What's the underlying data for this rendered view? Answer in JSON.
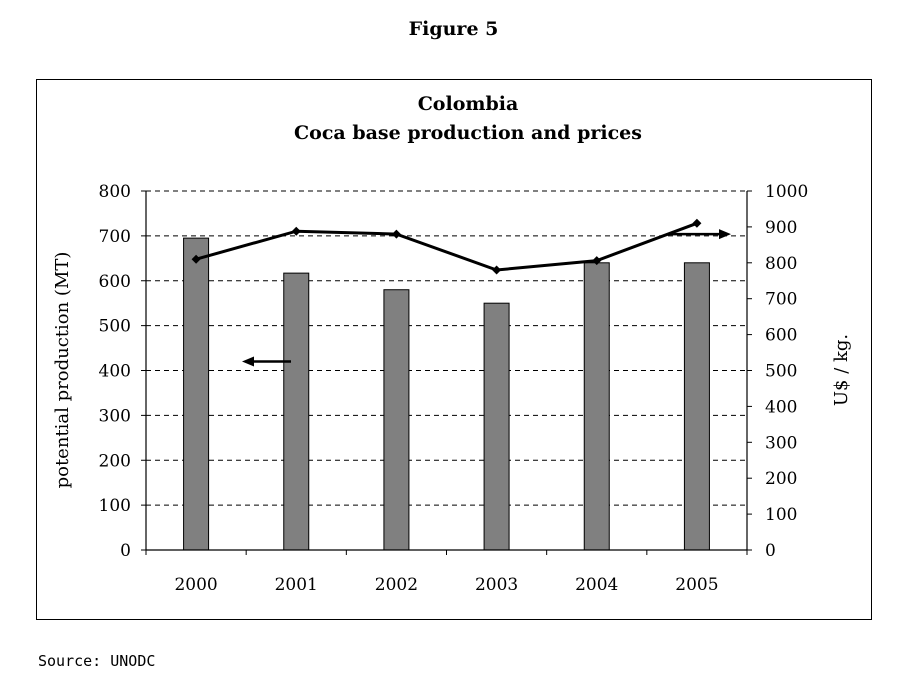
{
  "figure_label": "Figure 5",
  "source_note": "Source: UNODC",
  "colors": {
    "bar_fill": "#808080",
    "bar_stroke": "#000000",
    "line": "#000000",
    "grid": "#000000"
  },
  "chart_data": {
    "type": "bar+line",
    "title": "Colombia",
    "subtitle": "Coca base production and prices",
    "categories": [
      "2000",
      "2001",
      "2002",
      "2003",
      "2004",
      "2005"
    ],
    "series": [
      {
        "name": "potential production (MT)",
        "type": "bar",
        "axis": "left",
        "values": [
          695,
          617,
          580,
          550,
          640,
          640
        ]
      },
      {
        "name": "U$ / kg.",
        "type": "line",
        "axis": "right",
        "values": [
          810,
          888,
          880,
          780,
          806,
          910
        ]
      }
    ],
    "ylabel": "potential production (MT)",
    "y2label": "U$ / kg.",
    "ylim": [
      0,
      800
    ],
    "y2lim": [
      0,
      1000
    ],
    "yticks": [
      "0",
      "100",
      "200",
      "300",
      "400",
      "500",
      "600",
      "700",
      "800"
    ],
    "y2ticks": [
      "0",
      "100",
      "200",
      "300",
      "400",
      "500",
      "600",
      "700",
      "800",
      "900",
      "1000"
    ],
    "grid": "dashed-horizontal",
    "annotations": [
      {
        "type": "arrow",
        "direction": "left",
        "points_to": "left axis",
        "level": 420
      },
      {
        "type": "arrow",
        "direction": "right",
        "points_to": "right axis",
        "level": 880
      }
    ]
  }
}
